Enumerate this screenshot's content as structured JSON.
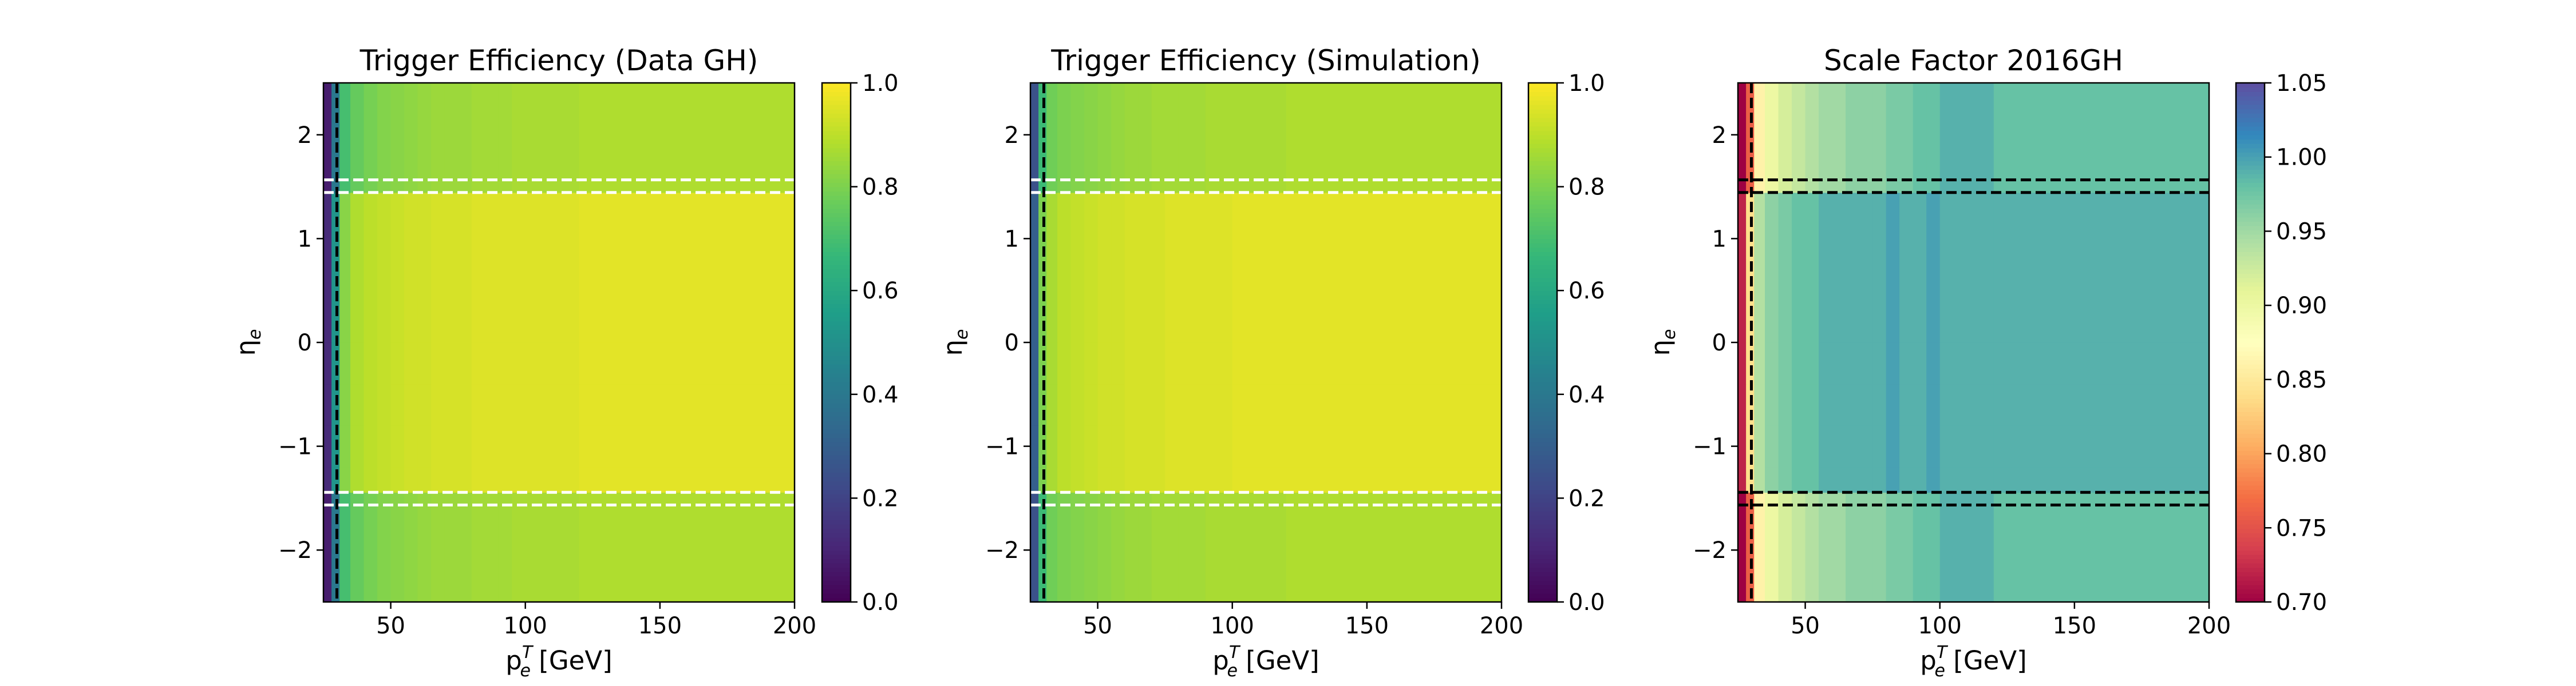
{
  "colorbar_common": {
    "ticks": [
      "0.0",
      "0.2",
      "0.4",
      "0.6",
      "0.8",
      "1.0"
    ]
  },
  "chart_data": [
    {
      "type": "heatmap",
      "title": "Trigger Efficiency (Data GH)",
      "xlabel": "p_e^T [GeV]",
      "ylabel": "η_e",
      "xlim": [
        25,
        200
      ],
      "ylim": [
        -2.5,
        2.5
      ],
      "xticks": [
        50,
        100,
        150,
        200
      ],
      "yticks": [
        -2,
        -1,
        0,
        1,
        2
      ],
      "x_bin_edges": [
        25,
        28,
        31,
        35,
        40,
        45,
        50,
        55,
        60,
        65,
        70,
        75,
        80,
        85,
        90,
        95,
        100,
        120,
        200
      ],
      "eta_bin_edges": [
        -2.5,
        -2.0,
        -1.566,
        -1.444,
        -1.2,
        -0.8,
        -0.4,
        0,
        0.4,
        0.8,
        1.2,
        1.444,
        1.566,
        2.0,
        2.5
      ],
      "values_outer_by_pt": [
        0.08,
        0.4,
        0.7,
        0.76,
        0.79,
        0.81,
        0.82,
        0.83,
        0.84,
        0.85,
        0.85,
        0.85,
        0.86,
        0.86,
        0.86,
        0.87,
        0.87,
        0.88
      ],
      "values_barrel_by_pt": [
        0.12,
        0.52,
        0.82,
        0.88,
        0.9,
        0.91,
        0.92,
        0.93,
        0.93,
        0.94,
        0.94,
        0.94,
        0.95,
        0.95,
        0.95,
        0.95,
        0.95,
        0.96
      ],
      "colorbar": {
        "range": [
          0.0,
          1.0
        ],
        "colormap": "viridis"
      },
      "annotations": {
        "vertical_dashed_line_x": 30,
        "vertical_line_color": "#000000",
        "horizontal_dashed_lines_eta": [
          -1.566,
          -1.444,
          1.444,
          1.566
        ],
        "horizontal_line_color": "#ffffff"
      }
    },
    {
      "type": "heatmap",
      "title": "Trigger Efficiency (Simulation)",
      "xlabel": "p_e^T [GeV]",
      "ylabel": "η_e",
      "xlim": [
        25,
        200
      ],
      "ylim": [
        -2.5,
        2.5
      ],
      "xticks": [
        50,
        100,
        150,
        200
      ],
      "yticks": [
        -2,
        -1,
        0,
        1,
        2
      ],
      "x_bin_edges": [
        25,
        28,
        31,
        35,
        40,
        45,
        50,
        55,
        60,
        65,
        70,
        75,
        80,
        85,
        90,
        95,
        100,
        120,
        200
      ],
      "eta_bin_edges": [
        -2.5,
        -2.0,
        -1.566,
        -1.444,
        -1.2,
        -0.8,
        -0.4,
        0,
        0.4,
        0.8,
        1.2,
        1.444,
        1.566,
        2.0,
        2.5
      ],
      "values_outer_by_pt": [
        0.25,
        0.68,
        0.78,
        0.8,
        0.81,
        0.82,
        0.83,
        0.84,
        0.85,
        0.85,
        0.86,
        0.86,
        0.86,
        0.86,
        0.87,
        0.87,
        0.87,
        0.88
      ],
      "values_barrel_by_pt": [
        0.3,
        0.8,
        0.87,
        0.9,
        0.91,
        0.92,
        0.93,
        0.93,
        0.94,
        0.94,
        0.94,
        0.95,
        0.95,
        0.95,
        0.95,
        0.95,
        0.96,
        0.96
      ],
      "colorbar": {
        "range": [
          0.0,
          1.0
        ],
        "colormap": "viridis"
      },
      "annotations": {
        "vertical_dashed_line_x": 30,
        "vertical_line_color": "#000000",
        "horizontal_dashed_lines_eta": [
          -1.566,
          -1.444,
          1.444,
          1.566
        ],
        "horizontal_line_color": "#ffffff"
      }
    },
    {
      "type": "heatmap",
      "title": "Scale Factor 2016GH",
      "xlabel": "p_e^T [GeV]",
      "ylabel": "η_e",
      "xlim": [
        25,
        200
      ],
      "ylim": [
        -2.5,
        2.5
      ],
      "xticks": [
        50,
        100,
        150,
        200
      ],
      "yticks": [
        -2,
        -1,
        0,
        1,
        2
      ],
      "x_bin_edges": [
        25,
        28,
        31,
        35,
        40,
        45,
        50,
        55,
        60,
        65,
        70,
        75,
        80,
        85,
        90,
        95,
        100,
        120,
        200
      ],
      "eta_bin_edges": [
        -2.5,
        -2.0,
        -1.566,
        -1.444,
        -1.2,
        -0.8,
        -0.4,
        0,
        0.4,
        0.8,
        1.2,
        1.444,
        1.566,
        2.0,
        2.5
      ],
      "values_outer_by_pt": [
        0.7,
        0.76,
        0.86,
        0.9,
        0.92,
        0.93,
        0.94,
        0.95,
        0.95,
        0.96,
        0.96,
        0.96,
        0.97,
        0.97,
        0.98,
        0.98,
        0.99,
        0.98
      ],
      "values_barrel_by_pt": [
        0.72,
        0.84,
        0.94,
        0.96,
        0.97,
        0.98,
        0.98,
        0.99,
        0.99,
        0.99,
        0.99,
        0.99,
        1.0,
        0.99,
        0.99,
        1.0,
        0.99,
        0.99
      ],
      "colorbar": {
        "range": [
          0.7,
          1.05
        ],
        "colormap": "Spectral",
        "ticks": [
          "0.70",
          "0.75",
          "0.80",
          "0.85",
          "0.90",
          "0.95",
          "1.00",
          "1.05"
        ]
      },
      "annotations": {
        "vertical_dashed_line_x": 30,
        "vertical_line_color": "#000000",
        "horizontal_dashed_lines_eta": [
          -1.566,
          -1.444,
          1.444,
          1.566
        ],
        "horizontal_line_color": "#000000"
      }
    }
  ]
}
